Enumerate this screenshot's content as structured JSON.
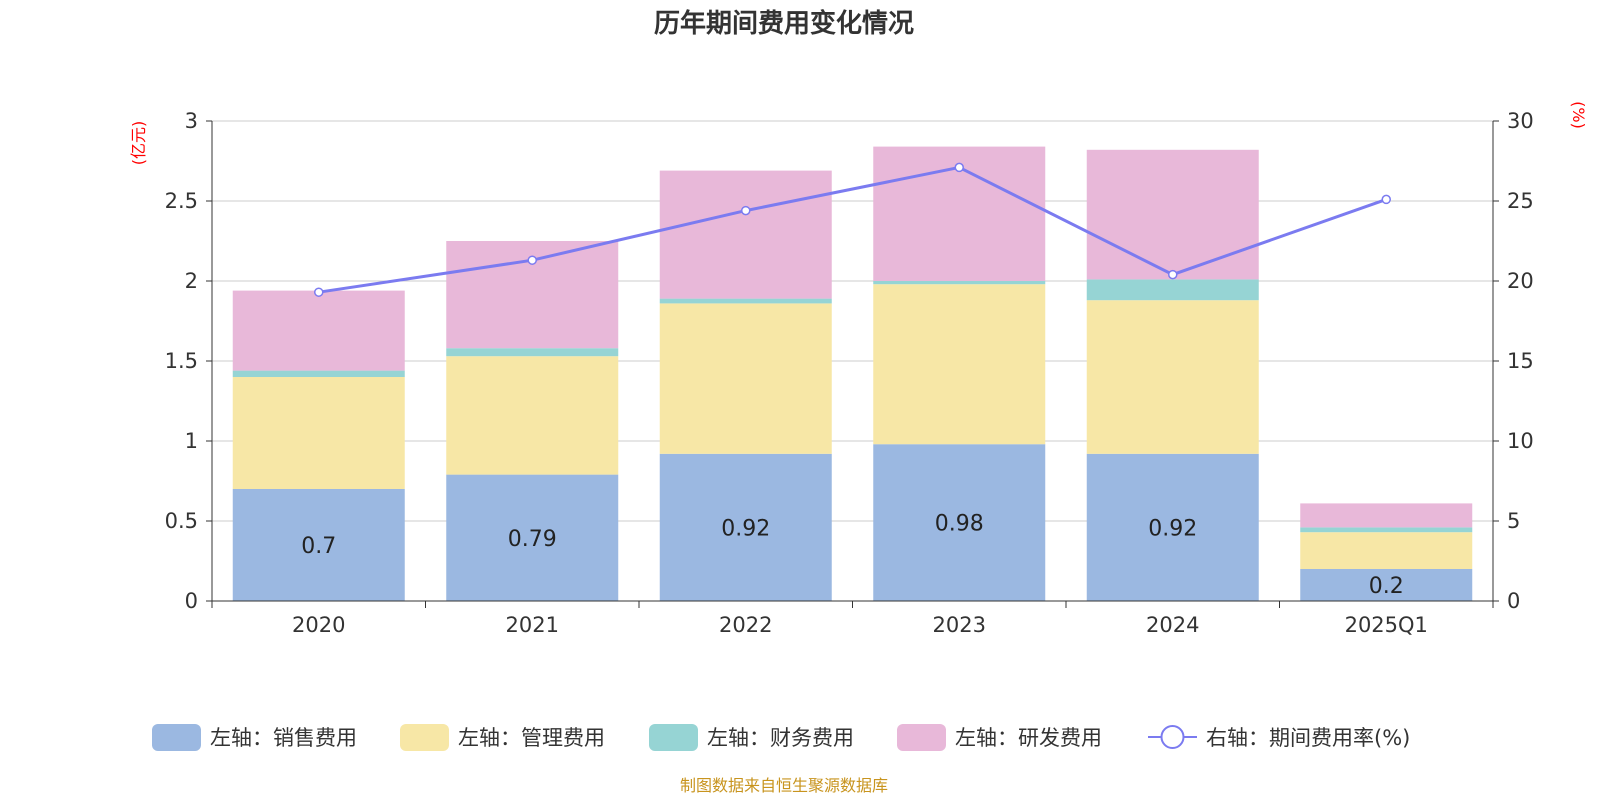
{
  "chart_data": {
    "type": "bar",
    "title": "历年期间费用变化情况",
    "categories": [
      "2020",
      "2021",
      "2022",
      "2023",
      "2024",
      "2025Q1"
    ],
    "ylabel_left": "(亿元)",
    "ylabel_right": "(%)",
    "ylim_left": [
      0,
      3
    ],
    "yticks_left": [
      "0",
      "0.5",
      "1",
      "1.5",
      "2",
      "2.5",
      "3"
    ],
    "ylim_right": [
      0,
      30
    ],
    "yticks_right": [
      "0",
      "5",
      "10",
      "15",
      "20",
      "25",
      "30"
    ],
    "grid": true,
    "legend_position": "bottom",
    "stacked": true,
    "series": [
      {
        "name": "左轴：销售费用",
        "axis": "left",
        "type": "bar",
        "color": "#9bb8e1",
        "values": [
          0.7,
          0.79,
          0.92,
          0.98,
          0.92,
          0.2
        ],
        "labels": [
          "0.7",
          "0.79",
          "0.92",
          "0.98",
          "0.92",
          "0.2"
        ]
      },
      {
        "name": "左轴：管理费用",
        "axis": "left",
        "type": "bar",
        "color": "#f7e7a6",
        "values": [
          0.7,
          0.74,
          0.94,
          1.0,
          0.96,
          0.23
        ]
      },
      {
        "name": "左轴：财务费用",
        "axis": "left",
        "type": "bar",
        "color": "#96d4d4",
        "values": [
          0.04,
          0.05,
          0.03,
          0.02,
          0.13,
          0.03
        ]
      },
      {
        "name": "左轴：研发费用",
        "axis": "left",
        "type": "bar",
        "color": "#e8b8d9",
        "values": [
          0.5,
          0.67,
          0.8,
          0.84,
          0.81,
          0.15
        ]
      },
      {
        "name": "右轴：期间费用率(%)",
        "axis": "right",
        "type": "line",
        "color": "#7b7bf0",
        "values": [
          19.3,
          21.3,
          24.4,
          27.1,
          20.4,
          25.1
        ]
      }
    ],
    "source": "制图数据来自恒生聚源数据库"
  }
}
